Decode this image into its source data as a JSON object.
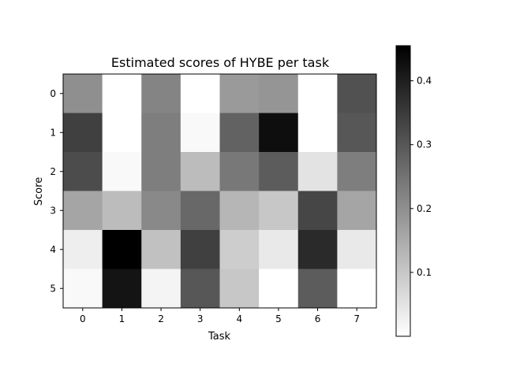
{
  "chart_data": {
    "type": "heatmap",
    "title": "Estimated scores of HYBE per task",
    "xlabel": "Task",
    "ylabel": "Score",
    "x_categories": [
      "0",
      "1",
      "2",
      "3",
      "4",
      "5",
      "6",
      "7"
    ],
    "y_categories": [
      "0",
      "1",
      "2",
      "3",
      "4",
      "5"
    ],
    "values": [
      [
        0.2,
        0.0,
        0.22,
        0.0,
        0.18,
        0.19,
        0.0,
        0.31
      ],
      [
        0.34,
        0.0,
        0.23,
        0.01,
        0.28,
        0.43,
        0.0,
        0.3
      ],
      [
        0.32,
        0.01,
        0.23,
        0.12,
        0.24,
        0.29,
        0.05,
        0.23
      ],
      [
        0.16,
        0.12,
        0.21,
        0.27,
        0.13,
        0.1,
        0.33,
        0.16
      ],
      [
        0.03,
        0.455,
        0.11,
        0.34,
        0.09,
        0.04,
        0.38,
        0.04
      ],
      [
        0.01,
        0.42,
        0.02,
        0.3,
        0.1,
        0.0,
        0.29,
        0.0
      ]
    ],
    "colormap": "Greys",
    "vmin": 0.0,
    "vmax": 0.455,
    "colorbar": {
      "ticks": [
        0.1,
        0.2,
        0.3,
        0.4
      ],
      "tick_labels": [
        "0.1",
        "0.2",
        "0.3",
        "0.4"
      ],
      "placement": "right"
    },
    "grid": false
  }
}
